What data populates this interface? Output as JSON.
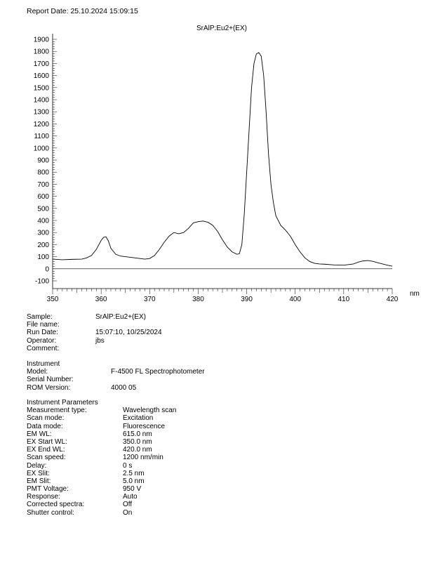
{
  "report": {
    "date_label": "Report Date: 25.10.2024 15:09:15"
  },
  "chart_data": {
    "type": "line",
    "title": "SrAlP:Eu2+(EX)",
    "xlabel": "nm",
    "ylabel": "",
    "xlim": [
      350,
      420
    ],
    "ylim": [
      -100,
      1900
    ],
    "x_ticks": [
      350,
      360,
      370,
      380,
      390,
      400,
      410,
      420
    ],
    "y_ticks": [
      -100,
      0,
      100,
      200,
      300,
      400,
      500,
      600,
      700,
      800,
      900,
      1000,
      1100,
      1200,
      1300,
      1400,
      1500,
      1600,
      1700,
      1800,
      1900
    ],
    "grid": false,
    "baseline_zero": true,
    "color": "#000000",
    "series": [
      {
        "x": [
          350,
          352,
          354,
          356,
          357,
          358,
          359,
          360,
          360.5,
          361,
          361.5,
          362,
          363,
          364,
          366,
          368,
          369,
          370,
          371,
          372,
          373,
          374,
          375,
          376,
          377,
          378,
          379,
          380,
          381,
          382,
          383,
          384,
          385,
          386,
          387,
          388,
          388.5,
          389,
          389.5,
          390,
          390.5,
          391,
          391.5,
          392,
          392.5,
          393,
          393.5,
          394,
          394.5,
          395,
          395.5,
          396,
          397,
          398,
          399,
          400,
          401,
          402,
          403,
          404,
          405,
          406,
          408,
          410,
          412,
          413,
          414,
          415,
          416,
          417,
          418,
          419,
          420
        ],
        "y": [
          80,
          75,
          78,
          80,
          90,
          110,
          160,
          235,
          260,
          265,
          230,
          170,
          120,
          105,
          95,
          85,
          80,
          85,
          110,
          160,
          220,
          270,
          300,
          290,
          300,
          335,
          380,
          390,
          395,
          385,
          360,
          310,
          240,
          180,
          140,
          120,
          125,
          200,
          450,
          800,
          1150,
          1500,
          1700,
          1780,
          1790,
          1760,
          1600,
          1300,
          950,
          700,
          550,
          440,
          360,
          320,
          270,
          200,
          140,
          90,
          60,
          45,
          40,
          38,
          32,
          30,
          40,
          55,
          65,
          68,
          62,
          50,
          40,
          30,
          22
        ]
      }
    ]
  },
  "info": {
    "sample_label": "Sample:",
    "sample_value": "SrAlP:Eu2+(EX)",
    "file_label": "File name:",
    "run_date_label": "Run Date:",
    "run_date_value": "15:07:10, 10/25/2024",
    "operator_label": "Operator:",
    "operator_value": "jbs",
    "comment_label": "Comment:"
  },
  "instrument": {
    "heading": "Instrument",
    "model_label": "Model:",
    "model_value": "F-4500 FL Spectrophotometer",
    "serial_label": "Serial Number:",
    "rom_label": "ROM Version:",
    "rom_value": "4000 05"
  },
  "params": {
    "heading": "Instrument Parameters",
    "rows": [
      {
        "label": "Measurement type:",
        "value": "Wavelength scan"
      },
      {
        "label": "Scan mode:",
        "value": "Excitation"
      },
      {
        "label": "Data mode:",
        "value": "Fluorescence"
      },
      {
        "label": "EM WL:",
        "value": "615.0 nm"
      },
      {
        "label": "EX  Start WL:",
        "value": "350.0 nm"
      },
      {
        "label": "EX  End WL:",
        "value": "420.0 nm"
      },
      {
        "label": "Scan speed:",
        "value": "1200 nm/min"
      },
      {
        "label": "Delay:",
        "value": "0 s"
      },
      {
        "label": "EX Slit:",
        "value": "2.5 nm"
      },
      {
        "label": "EM Slit:",
        "value": "5.0 nm"
      },
      {
        "label": "PMT Voltage:",
        "value": "950 V"
      },
      {
        "label": "Response:",
        "value": "Auto"
      },
      {
        "label": "Corrected spectra:",
        "value": "Off"
      },
      {
        "label": "Shutter control:",
        "value": "On"
      }
    ]
  }
}
